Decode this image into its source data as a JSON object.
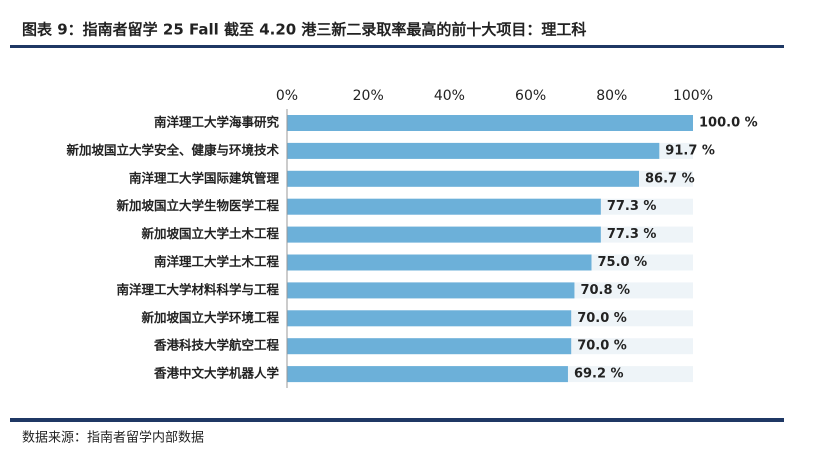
{
  "chart_data": {
    "type": "bar",
    "orientation": "horizontal",
    "title": "图表 9：指南者留学 25 Fall 截至 4.20 港三新二录取率最高的前十大项目：理工科",
    "source": "数据来源：指南者留学内部数据",
    "categories": [
      "南洋理工大学海事研究",
      "新加坡国立大学安全、健康与环境技术",
      "南洋理工大学国际建筑管理",
      "新加坡国立大学生物医学工程",
      "新加坡国立大学土木工程",
      "南洋理工大学土木工程",
      "南洋理工大学材料科学与工程",
      "新加坡国立大学环境工程",
      "香港科技大学航空工程",
      "香港中文大学机器人学"
    ],
    "values": [
      100.0,
      91.7,
      86.7,
      77.3,
      77.3,
      75.0,
      70.8,
      70.0,
      70.0,
      69.2
    ],
    "value_labels": [
      "100.0 %",
      "91.7 %",
      "86.7 %",
      "77.3 %",
      "77.3 %",
      "75.0 %",
      "70.8 %",
      "70.0 %",
      "70.0 %",
      "69.2 %"
    ],
    "color": "#6cb0d9",
    "xlim": [
      0,
      100
    ],
    "xticks": [
      {
        "value": 0,
        "label": "0%"
      },
      {
        "value": 20,
        "label": "20%"
      },
      {
        "value": 40,
        "label": "40%"
      },
      {
        "value": 60,
        "label": "60%"
      },
      {
        "value": 80,
        "label": "80%"
      },
      {
        "value": 100,
        "label": "100%"
      }
    ]
  }
}
